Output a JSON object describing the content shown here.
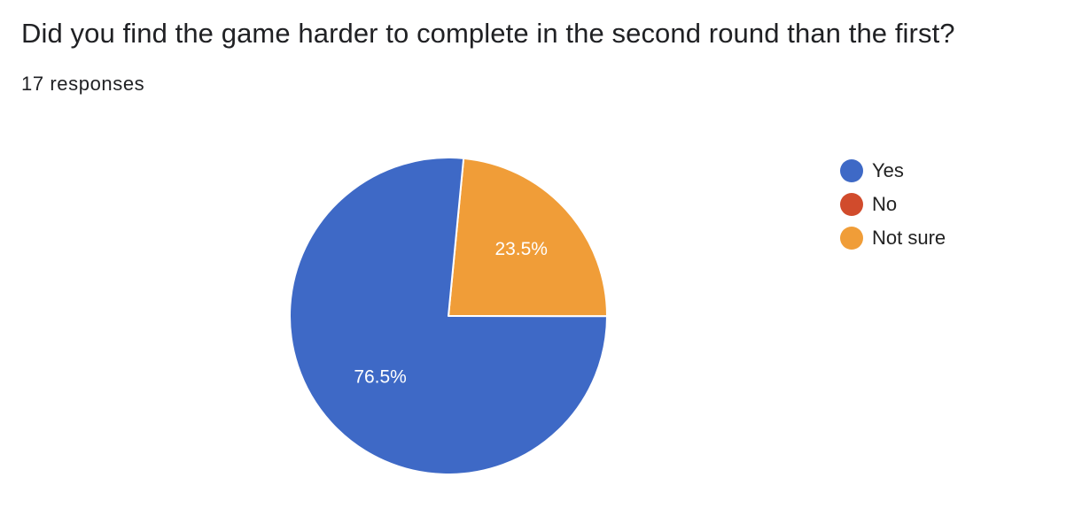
{
  "header": {
    "question": "Did you find the game harder to complete in the second round than the first?",
    "responses": "17 responses"
  },
  "chart_data": {
    "type": "pie",
    "categories": [
      "Yes",
      "No",
      "Not sure"
    ],
    "values": [
      76.5,
      0,
      23.5
    ],
    "labels": [
      "76.5%",
      "",
      "23.5%"
    ],
    "colors": [
      "#3E69C6",
      "#D14B2C",
      "#F09D38"
    ],
    "legend_position": "right",
    "start_slice": "Not sure"
  }
}
